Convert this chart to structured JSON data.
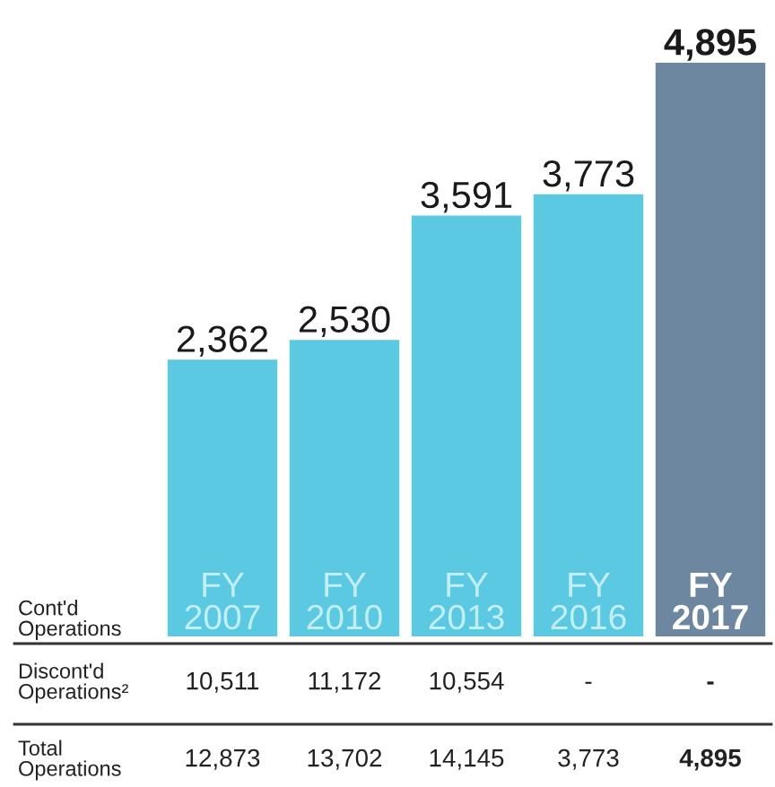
{
  "chart_data": {
    "type": "bar",
    "categories": [
      "FY\n2007",
      "FY\n2010",
      "FY\n2013",
      "FY\n2016",
      "FY\n2017"
    ],
    "values": [
      2362,
      2530,
      3591,
      3773,
      4895
    ],
    "colors": [
      "#5bc9e1",
      "#5bc9e1",
      "#5bc9e1",
      "#5bc9e1",
      "#6d87a0"
    ],
    "value_labels": [
      "2,362",
      "2,530",
      "3,591",
      "3,773",
      "4,895"
    ],
    "annotations": [
      "Cont'd\nOperations",
      "Discont'd\nOperations²",
      "10,511",
      "11,172",
      "10,554",
      "-",
      "-",
      "Total\nOperations",
      "12,873",
      "13,702",
      "14,145",
      "3,773",
      "4,895"
    ]
  }
}
